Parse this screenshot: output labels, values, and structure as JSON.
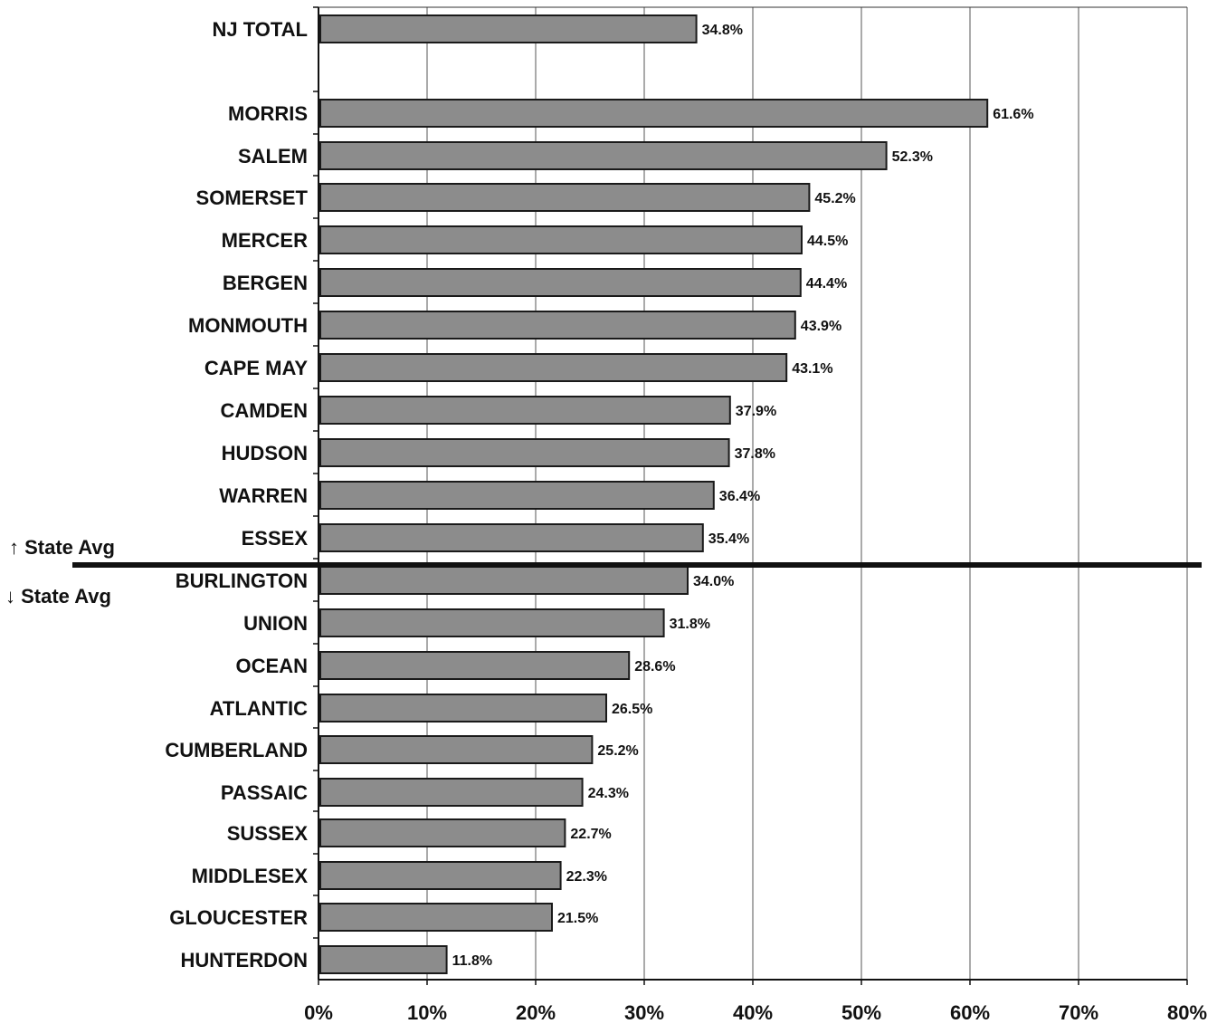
{
  "chart_data": {
    "type": "bar",
    "orientation": "horizontal",
    "categories": [
      "NJ TOTAL",
      "MORRIS",
      "SALEM",
      "SOMERSET",
      "MERCER",
      "BERGEN",
      "MONMOUTH",
      "CAPE MAY",
      "CAMDEN",
      "HUDSON",
      "WARREN",
      "ESSEX",
      "BURLINGTON",
      "UNION",
      "OCEAN",
      "ATLANTIC",
      "CUMBERLAND",
      "PASSAIC",
      "SUSSEX",
      "MIDDLESEX",
      "GLOUCESTER",
      "HUNTERDON"
    ],
    "values": [
      34.8,
      61.6,
      52.3,
      45.2,
      44.5,
      44.4,
      43.9,
      43.1,
      37.9,
      37.8,
      36.4,
      35.4,
      34.0,
      31.8,
      28.6,
      26.5,
      25.2,
      24.3,
      22.7,
      22.3,
      21.5,
      11.8
    ],
    "value_labels": [
      "34.8%",
      "61.6%",
      "52.3%",
      "45.2%",
      "44.5%",
      "44.4%",
      "43.9%",
      "43.1%",
      "37.9%",
      "37.8%",
      "36.4%",
      "35.4%",
      "34.0%",
      "31.8%",
      "28.6%",
      "26.5%",
      "25.2%",
      "24.3%",
      "22.7%",
      "22.3%",
      "21.5%",
      "11.8%"
    ],
    "xlim": [
      0,
      80
    ],
    "x_ticks": [
      0,
      10,
      20,
      30,
      40,
      50,
      60,
      70,
      80
    ],
    "x_tick_labels": [
      "0%",
      "10%",
      "20%",
      "30%",
      "40%",
      "50%",
      "60%",
      "70%",
      "80%"
    ],
    "grid": "vertical",
    "bar_color": "#8c8c8c",
    "title": "",
    "xlabel": "",
    "ylabel": "",
    "state_average_line": {
      "above_label": "↑ State Avg",
      "below_label": "↓ State Avg"
    }
  }
}
